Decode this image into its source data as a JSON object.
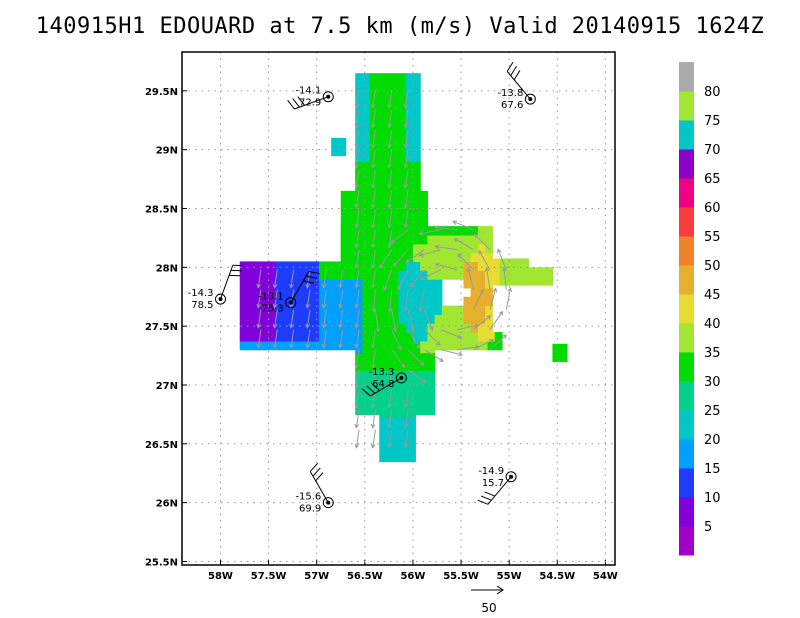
{
  "title": "140915H1 EDOUARD at 7.5 km (m/s) Valid 20140915 1624Z",
  "map": {
    "lon_range": [
      -58.4,
      -53.9
    ],
    "lat_range": [
      25.47,
      29.83
    ],
    "lon_ticks": [
      -58,
      -57.5,
      -57,
      -56.5,
      -56,
      -55.5,
      -55,
      -54.5,
      -54
    ],
    "lon_tick_labels": [
      "58W",
      "57.5W",
      "57W",
      "56.5W",
      "56W",
      "55.5W",
      "55W",
      "54.5W",
      "54W"
    ],
    "lat_ticks": [
      25.5,
      26,
      26.5,
      27,
      27.5,
      28,
      28.5,
      29,
      29.5
    ],
    "lat_tick_labels": [
      "25.5N",
      "26N",
      "26.5N",
      "27N",
      "27.5N",
      "28N",
      "28.5N",
      "29N",
      "29.5N"
    ],
    "grid": true,
    "center": {
      "lon": -55.6,
      "lat": 27.75
    },
    "eye_radius_deg": 0.14
  },
  "colorbar": {
    "labels": [
      "5",
      "10",
      "15",
      "20",
      "25",
      "30",
      "35",
      "40",
      "45",
      "50",
      "55",
      "60",
      "65",
      "70",
      "75",
      "80"
    ],
    "colors": [
      "#a000c8",
      "#8200dc",
      "#1e3cff",
      "#00a0ff",
      "#00c8c8",
      "#00d28c",
      "#00dc00",
      "#a0e632",
      "#e6dc32",
      "#e6af2d",
      "#f08228",
      "#fa3c3c",
      "#f00082",
      "#8c00c8",
      "#00c8c8",
      "#a0e632",
      "#aaaaaa"
    ]
  },
  "vector_reference": {
    "label": "50"
  },
  "observations": [
    {
      "lon": -56.88,
      "lat": 29.45,
      "temp": "-14.1",
      "value": "72.9"
    },
    {
      "lon": -54.78,
      "lat": 29.43,
      "temp": "-13.8",
      "value": "67.6"
    },
    {
      "lon": -58.0,
      "lat": 27.73,
      "temp": "-14.3",
      "value": "78.5"
    },
    {
      "lon": -57.27,
      "lat": 27.7,
      "temp": "-13.1",
      "value": "75.3"
    },
    {
      "lon": -56.12,
      "lat": 27.06,
      "temp": "-13.3",
      "value": "64.8"
    },
    {
      "lon": -54.98,
      "lat": 26.22,
      "temp": "-14.9",
      "value": "15.7"
    },
    {
      "lon": -56.88,
      "lat": 26.0,
      "temp": "-15.6",
      "value": "69.9"
    }
  ]
}
